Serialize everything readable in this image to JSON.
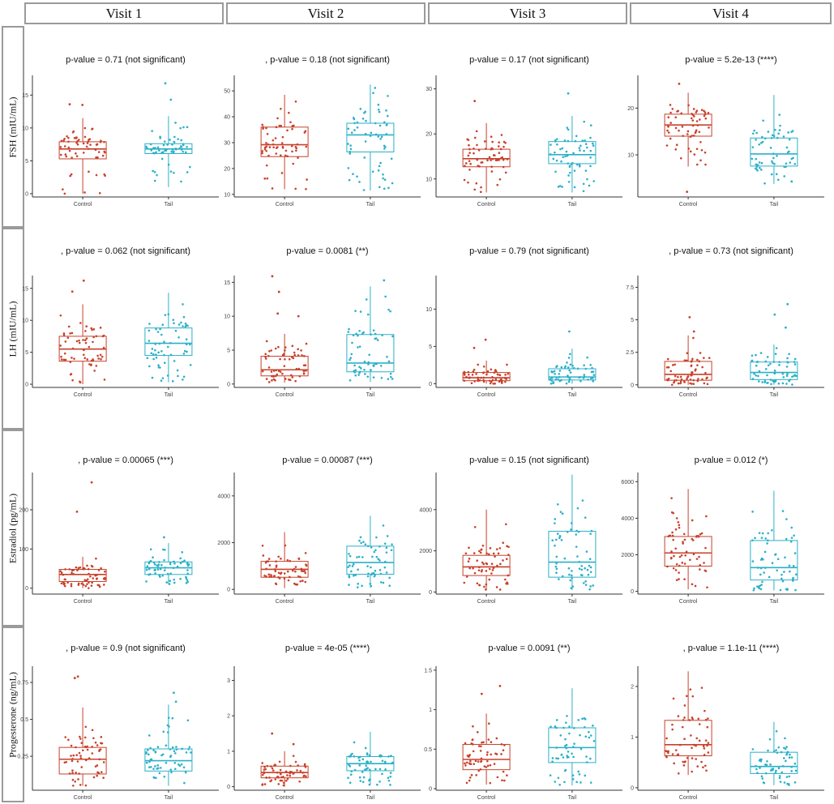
{
  "colors": {
    "control": "#c8412b",
    "tail": "#2bb0c8",
    "axis": "#333333",
    "frame": "#9a9a9a"
  },
  "columns": [
    "Visit 1",
    "Visit 2",
    "Visit 3",
    "Visit 4"
  ],
  "rows": [
    "FSH (mIU/mL)",
    "LH (mIU/mL)",
    "Estradiol (pg/mL)",
    "Progesterone (ng/mL)"
  ],
  "chart_data": [
    {
      "type": "box",
      "row": 0,
      "col": 0,
      "title": "p-value = 0.71 (not significant)",
      "categories": [
        "Control",
        "Tail"
      ],
      "ylim": [
        -0.5,
        18
      ],
      "yticks": [
        0,
        5,
        10,
        15
      ],
      "boxes": [
        {
          "q1": 5.3,
          "median": 6.8,
          "q3": 7.9,
          "min": 0,
          "max": 11.5,
          "outliers": [
            13.5,
            13.6
          ]
        },
        {
          "q1": 6.1,
          "median": 6.8,
          "q3": 7.6,
          "min": 1,
          "max": 11.8,
          "outliers": [
            14.3,
            16.8
          ]
        }
      ]
    },
    {
      "type": "box",
      "row": 0,
      "col": 1,
      "title": ", p-value = 0.18 (not significant)",
      "categories": [
        "Control",
        "Tail"
      ],
      "ylim": [
        9,
        56
      ],
      "yticks": [
        10,
        20,
        30,
        40,
        50
      ],
      "boxes": [
        {
          "q1": 24.6,
          "median": 29.2,
          "q3": 36,
          "min": 12,
          "max": 48.5,
          "outliers": []
        },
        {
          "q1": 26.4,
          "median": 33,
          "q3": 37.5,
          "min": 11.5,
          "max": 52.4,
          "outliers": []
        }
      ]
    },
    {
      "type": "box",
      "row": 0,
      "col": 2,
      "title": "p-value = 0.17 (not significant)",
      "categories": [
        "Control",
        "Tail"
      ],
      "ylim": [
        6,
        33
      ],
      "yticks": [
        10,
        20,
        30
      ],
      "boxes": [
        {
          "q1": 12.7,
          "median": 14.5,
          "q3": 16.6,
          "min": 7,
          "max": 22.4,
          "outliers": [
            27.3
          ]
        },
        {
          "q1": 13.4,
          "median": 15.4,
          "q3": 18.3,
          "min": 7,
          "max": 24,
          "outliers": [
            29
          ]
        }
      ]
    },
    {
      "type": "box",
      "row": 0,
      "col": 3,
      "title": "p-value = 5.2e-13 (****)",
      "categories": [
        "Control",
        "Tail"
      ],
      "ylim": [
        1,
        27
      ],
      "yticks": [
        10,
        20
      ],
      "boxes": [
        {
          "q1": 14,
          "median": 16.4,
          "q3": 18.7,
          "min": 7.5,
          "max": 23.3,
          "outliers": [
            2.1,
            25.2
          ]
        },
        {
          "q1": 7.6,
          "median": 10.2,
          "q3": 13.6,
          "min": 3.8,
          "max": 22.8,
          "outliers": []
        }
      ]
    },
    {
      "type": "box",
      "row": 1,
      "col": 0,
      "title": ", p-value = 0.062 (not significant)",
      "categories": [
        "Control",
        "Tail"
      ],
      "ylim": [
        -0.5,
        17
      ],
      "yticks": [
        0,
        5,
        10,
        15
      ],
      "boxes": [
        {
          "q1": 3.6,
          "median": 5.5,
          "q3": 7.5,
          "min": 0,
          "max": 12.5,
          "outliers": [
            14.5,
            16.2
          ]
        },
        {
          "q1": 4.5,
          "median": 6.4,
          "q3": 8.8,
          "min": 0.3,
          "max": 14.3,
          "outliers": []
        }
      ]
    },
    {
      "type": "box",
      "row": 1,
      "col": 1,
      "title": "p-value = 0.0081 (**)",
      "categories": [
        "Control",
        "Tail"
      ],
      "ylim": [
        -0.5,
        16
      ],
      "yticks": [
        0,
        5,
        10,
        15
      ],
      "boxes": [
        {
          "q1": 1.2,
          "median": 2.1,
          "q3": 4.1,
          "min": 0.2,
          "max": 7.4,
          "outliers": [
            10,
            10.4,
            13.6,
            15.9
          ]
        },
        {
          "q1": 1.8,
          "median": 3.1,
          "q3": 7.3,
          "min": 0.3,
          "max": 14.4,
          "outliers": [
            15.3
          ]
        }
      ]
    },
    {
      "type": "box",
      "row": 1,
      "col": 2,
      "title": "p-value = 0.79 (not significant)",
      "categories": [
        "Control",
        "Tail"
      ],
      "ylim": [
        -0.5,
        14.5
      ],
      "yticks": [
        0,
        5,
        10
      ],
      "boxes": [
        {
          "q1": 0.4,
          "median": 0.8,
          "q3": 1.5,
          "min": 0,
          "max": 3.1,
          "outliers": [
            4.8,
            5.9
          ]
        },
        {
          "q1": 0.5,
          "median": 0.9,
          "q3": 2,
          "min": 0,
          "max": 4.7,
          "outliers": [
            7
          ]
        }
      ]
    },
    {
      "type": "box",
      "row": 1,
      "col": 3,
      "title": ", p-value = 0.73 (not significant)",
      "categories": [
        "Control",
        "Tail"
      ],
      "ylim": [
        -0.2,
        8.4
      ],
      "yticks": [
        0,
        2.5,
        5,
        7.5
      ],
      "boxes": [
        {
          "q1": 0.35,
          "median": 0.8,
          "q3": 1.8,
          "min": 0,
          "max": 3.8,
          "outliers": [
            4.1,
            5.2
          ]
        },
        {
          "q1": 0.4,
          "median": 0.95,
          "q3": 1.75,
          "min": 0,
          "max": 3.1,
          "outliers": [
            4.4,
            5.4,
            6.2
          ]
        }
      ]
    },
    {
      "type": "box",
      "row": 2,
      "col": 0,
      "title": ", p-value = 0.00065 (***)",
      "categories": [
        "Control",
        "Tail"
      ],
      "ylim": [
        -15,
        295
      ],
      "yticks": [
        0,
        100,
        200
      ],
      "boxes": [
        {
          "q1": 17,
          "median": 35,
          "q3": 48,
          "min": 0,
          "max": 80,
          "outliers": [
            195,
            270
          ]
        },
        {
          "q1": 35,
          "median": 52,
          "q3": 67,
          "min": 10,
          "max": 115,
          "outliers": [
            130
          ]
        }
      ]
    },
    {
      "type": "box",
      "row": 2,
      "col": 1,
      "title": "p-value = 0.00087 (***)",
      "categories": [
        "Control",
        "Tail"
      ],
      "ylim": [
        -200,
        5000
      ],
      "yticks": [
        0,
        2000,
        4000
      ],
      "boxes": [
        {
          "q1": 520,
          "median": 860,
          "q3": 1200,
          "min": 50,
          "max": 2450,
          "outliers": []
        },
        {
          "q1": 650,
          "median": 1150,
          "q3": 1850,
          "min": 80,
          "max": 3150,
          "outliers": []
        }
      ]
    },
    {
      "type": "box",
      "row": 2,
      "col": 2,
      "title": "p-value = 0.15 (not significant)",
      "categories": [
        "Control",
        "Tail"
      ],
      "ylim": [
        -100,
        5800
      ],
      "yticks": [
        0,
        2000,
        4000
      ],
      "boxes": [
        {
          "q1": 800,
          "median": 1220,
          "q3": 1780,
          "min": 100,
          "max": 4000,
          "outliers": []
        },
        {
          "q1": 720,
          "median": 1450,
          "q3": 2950,
          "min": 100,
          "max": 5700,
          "outliers": []
        }
      ]
    },
    {
      "type": "box",
      "row": 2,
      "col": 3,
      "title": "p-value = 0.012 (*)",
      "categories": [
        "Control",
        "Tail"
      ],
      "ylim": [
        -150,
        6500
      ],
      "yticks": [
        0,
        2000,
        4000,
        6000
      ],
      "boxes": [
        {
          "q1": 1380,
          "median": 2100,
          "q3": 3000,
          "min": 100,
          "max": 5600,
          "outliers": []
        },
        {
          "q1": 620,
          "median": 1300,
          "q3": 2780,
          "min": 50,
          "max": 5500,
          "outliers": []
        }
      ]
    },
    {
      "type": "box",
      "row": 3,
      "col": 0,
      "title": ", p-value = 0.9 (not significant)",
      "categories": [
        "Control",
        "Tail"
      ],
      "ylim": [
        0.02,
        0.86
      ],
      "yticks": [
        0.25,
        0.5,
        0.75
      ],
      "boxes": [
        {
          "q1": 0.13,
          "median": 0.23,
          "q3": 0.31,
          "min": 0.05,
          "max": 0.58,
          "outliers": [
            0.78,
            0.79
          ]
        },
        {
          "q1": 0.15,
          "median": 0.22,
          "q3": 0.3,
          "min": 0.05,
          "max": 0.6,
          "outliers": [
            0.62,
            0.68
          ]
        }
      ]
    },
    {
      "type": "box",
      "row": 3,
      "col": 1,
      "title": "p-value = 4e-05 (****)",
      "categories": [
        "Control",
        "Tail"
      ],
      "ylim": [
        -0.1,
        3.4
      ],
      "yticks": [
        0,
        1,
        2,
        3
      ],
      "boxes": [
        {
          "q1": 0.25,
          "median": 0.4,
          "q3": 0.58,
          "min": 0,
          "max": 1.0,
          "outliers": [
            1.2,
            1.5
          ]
        },
        {
          "q1": 0.45,
          "median": 0.65,
          "q3": 0.85,
          "min": 0.05,
          "max": 1.55,
          "outliers": []
        }
      ]
    },
    {
      "type": "box",
      "row": 3,
      "col": 2,
      "title": "p-value = 0.0091 (**)",
      "categories": [
        "Control",
        "Tail"
      ],
      "ylim": [
        -0.02,
        1.55
      ],
      "yticks": [
        0,
        0.5,
        1,
        1.5
      ],
      "boxes": [
        {
          "q1": 0.24,
          "median": 0.37,
          "q3": 0.56,
          "min": 0.05,
          "max": 0.95,
          "outliers": [
            1.2,
            1.3
          ]
        },
        {
          "q1": 0.33,
          "median": 0.52,
          "q3": 0.77,
          "min": 0.04,
          "max": 1.27,
          "outliers": []
        }
      ]
    },
    {
      "type": "box",
      "row": 3,
      "col": 3,
      "title": ", p-value = 1.1e-11 (****)",
      "categories": [
        "Control",
        "Tail"
      ],
      "ylim": [
        -0.05,
        2.4
      ],
      "yticks": [
        0,
        1,
        2
      ],
      "boxes": [
        {
          "q1": 0.63,
          "median": 0.85,
          "q3": 1.33,
          "min": 0.25,
          "max": 2.3,
          "outliers": []
        },
        {
          "q1": 0.28,
          "median": 0.42,
          "q3": 0.7,
          "min": 0.05,
          "max": 1.3,
          "outliers": []
        }
      ]
    }
  ]
}
